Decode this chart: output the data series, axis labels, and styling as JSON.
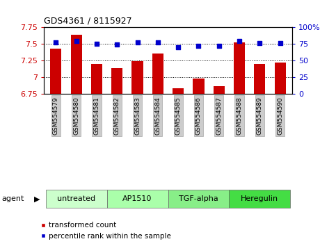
{
  "title": "GDS4361 / 8115927",
  "categories": [
    "GSM554579",
    "GSM554580",
    "GSM554581",
    "GSM554582",
    "GSM554583",
    "GSM554584",
    "GSM554585",
    "GSM554586",
    "GSM554587",
    "GSM554588",
    "GSM554589",
    "GSM554590"
  ],
  "bar_values": [
    7.43,
    7.63,
    7.2,
    7.13,
    7.24,
    7.35,
    6.83,
    6.97,
    6.86,
    7.52,
    7.2,
    7.22
  ],
  "dot_values": [
    77,
    79,
    75,
    74,
    77,
    77,
    70,
    72,
    72,
    79,
    76,
    76
  ],
  "ylim_left": [
    6.75,
    7.75
  ],
  "ylim_right": [
    0,
    100
  ],
  "yticks_left": [
    6.75,
    7.0,
    7.25,
    7.5,
    7.75
  ],
  "yticks_right": [
    0,
    25,
    50,
    75,
    100
  ],
  "ytick_labels_left": [
    "6.75",
    "7",
    "7.25",
    "7.5",
    "7.75"
  ],
  "ytick_labels_right": [
    "0",
    "25",
    "50",
    "75",
    "100%"
  ],
  "bar_color": "#cc0000",
  "dot_color": "#0000cc",
  "agent_groups": [
    {
      "label": "untreated",
      "start": 0,
      "end": 2,
      "color": "#ccffcc"
    },
    {
      "label": "AP1510",
      "start": 3,
      "end": 5,
      "color": "#aaffaa"
    },
    {
      "label": "TGF-alpha",
      "start": 6,
      "end": 8,
      "color": "#88ee88"
    },
    {
      "label": "Heregulin",
      "start": 9,
      "end": 11,
      "color": "#44dd44"
    }
  ],
  "legend_items": [
    {
      "label": "transformed count",
      "color": "#cc0000"
    },
    {
      "label": "percentile rank within the sample",
      "color": "#0000cc"
    }
  ],
  "agent_label": "agent",
  "tick_label_color_left": "#cc0000",
  "tick_label_color_right": "#0000cc",
  "bar_width": 0.55,
  "xtick_bg": "#cccccc",
  "xtick_edge": "#999999"
}
